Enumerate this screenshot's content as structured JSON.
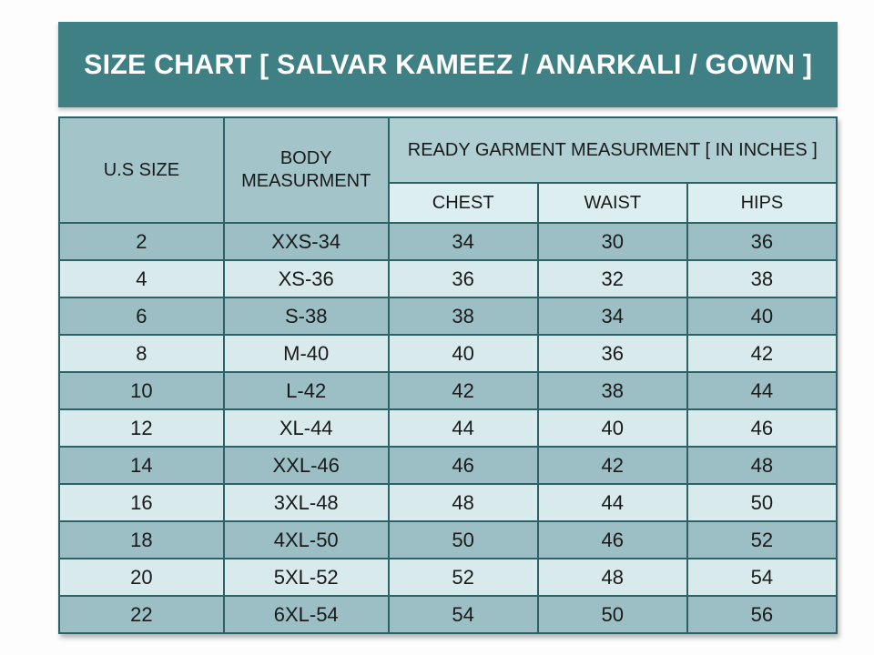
{
  "title": "SIZE CHART [ SALVAR KAMEEZ / ANARKALI / GOWN ]",
  "chart_data": {
    "type": "table",
    "title": "SIZE CHART [ SALVAR KAMEEZ / ANARKALI / GOWN ]",
    "header": {
      "us_size": "U.S SIZE",
      "body_measurement": "BODY MEASURMENT",
      "ready_garment_group": "READY GARMENT MEASURMENT [ IN INCHES ]",
      "chest": "CHEST",
      "waist": "WAIST",
      "hips": "HIPS"
    },
    "column_keys": [
      "us_size",
      "body_measurement",
      "chest",
      "waist",
      "hips"
    ],
    "rows": [
      {
        "us_size": "2",
        "body_measurement": "XXS-34",
        "chest": "34",
        "waist": "30",
        "hips": "36"
      },
      {
        "us_size": "4",
        "body_measurement": "XS-36",
        "chest": "36",
        "waist": "32",
        "hips": "38"
      },
      {
        "us_size": "6",
        "body_measurement": "S-38",
        "chest": "38",
        "waist": "34",
        "hips": "40"
      },
      {
        "us_size": "8",
        "body_measurement": "M-40",
        "chest": "40",
        "waist": "36",
        "hips": "42"
      },
      {
        "us_size": "10",
        "body_measurement": "L-42",
        "chest": "42",
        "waist": "38",
        "hips": "44"
      },
      {
        "us_size": "12",
        "body_measurement": "XL-44",
        "chest": "44",
        "waist": "40",
        "hips": "46"
      },
      {
        "us_size": "14",
        "body_measurement": "XXL-46",
        "chest": "46",
        "waist": "42",
        "hips": "48"
      },
      {
        "us_size": "16",
        "body_measurement": "3XL-48",
        "chest": "48",
        "waist": "44",
        "hips": "50"
      },
      {
        "us_size": "18",
        "body_measurement": "4XL-50",
        "chest": "50",
        "waist": "46",
        "hips": "52"
      },
      {
        "us_size": "20",
        "body_measurement": "5XL-52",
        "chest": "52",
        "waist": "48",
        "hips": "54"
      },
      {
        "us_size": "22",
        "body_measurement": "6XL-54",
        "chest": "54",
        "waist": "50",
        "hips": "56"
      }
    ]
  },
  "colors": {
    "title_background": "#3E8084",
    "title_text": "#FFFFFF",
    "header_cell_background": "#A3C4C9",
    "group_header_background": "#B0CFD3",
    "subheader_background": "#DDEEF0",
    "row_dark_background": "#9BBFC5",
    "row_light_background": "#D9EAED",
    "grid_border": "#2E6166",
    "cell_text": "#1A1A1A"
  }
}
